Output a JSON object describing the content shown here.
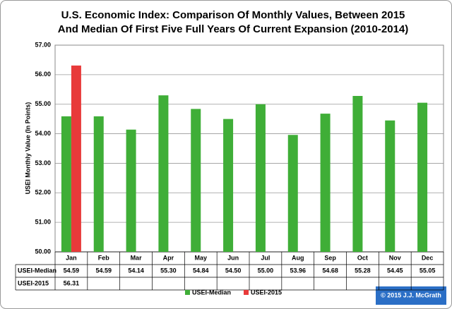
{
  "chart_data": {
    "type": "bar",
    "title": [
      "U.S. Economic Index: Comparison Of Monthly Values, Between 2015",
      "And Median Of First Five Full Years Of Current Expansion (2010-2014)"
    ],
    "y_label": "USEI Monthly Value (In Points)",
    "categories": [
      "Jan",
      "Feb",
      "Mar",
      "Apr",
      "May",
      "Jun",
      "Jul",
      "Aug",
      "Sep",
      "Oct",
      "Nov",
      "Dec"
    ],
    "series": [
      {
        "name": "USEI-Median",
        "color": "#3fae37",
        "values": [
          54.59,
          54.59,
          54.14,
          55.3,
          54.84,
          54.5,
          55.0,
          53.96,
          54.68,
          55.28,
          54.45,
          55.05
        ],
        "value_labels": [
          "54.59",
          "54.59",
          "54.14",
          "55.30",
          "54.84",
          "54.50",
          "55.00",
          "53.96",
          "54.68",
          "55.28",
          "54.45",
          "55.05"
        ]
      },
      {
        "name": "USEI-2015",
        "color": "#e83a3a",
        "values": [
          56.31,
          null,
          null,
          null,
          null,
          null,
          null,
          null,
          null,
          null,
          null,
          null
        ],
        "value_labels": [
          "56.31",
          null,
          null,
          null,
          null,
          null,
          null,
          null,
          null,
          null,
          null,
          null
        ]
      }
    ],
    "ylim": [
      50,
      57
    ],
    "yticks": [
      {
        "value": 50,
        "label": "50.00"
      },
      {
        "value": 51,
        "label": "51.00"
      },
      {
        "value": 52,
        "label": "52.00"
      },
      {
        "value": 53,
        "label": "53.00"
      },
      {
        "value": 54,
        "label": "54.00"
      },
      {
        "value": 55,
        "label": "55.00"
      },
      {
        "value": 56,
        "label": "56.00"
      },
      {
        "value": 57,
        "label": "57.00"
      }
    ],
    "grid": true,
    "legend": "bottom",
    "annotation": "© 2015 J.J. McGrath"
  }
}
